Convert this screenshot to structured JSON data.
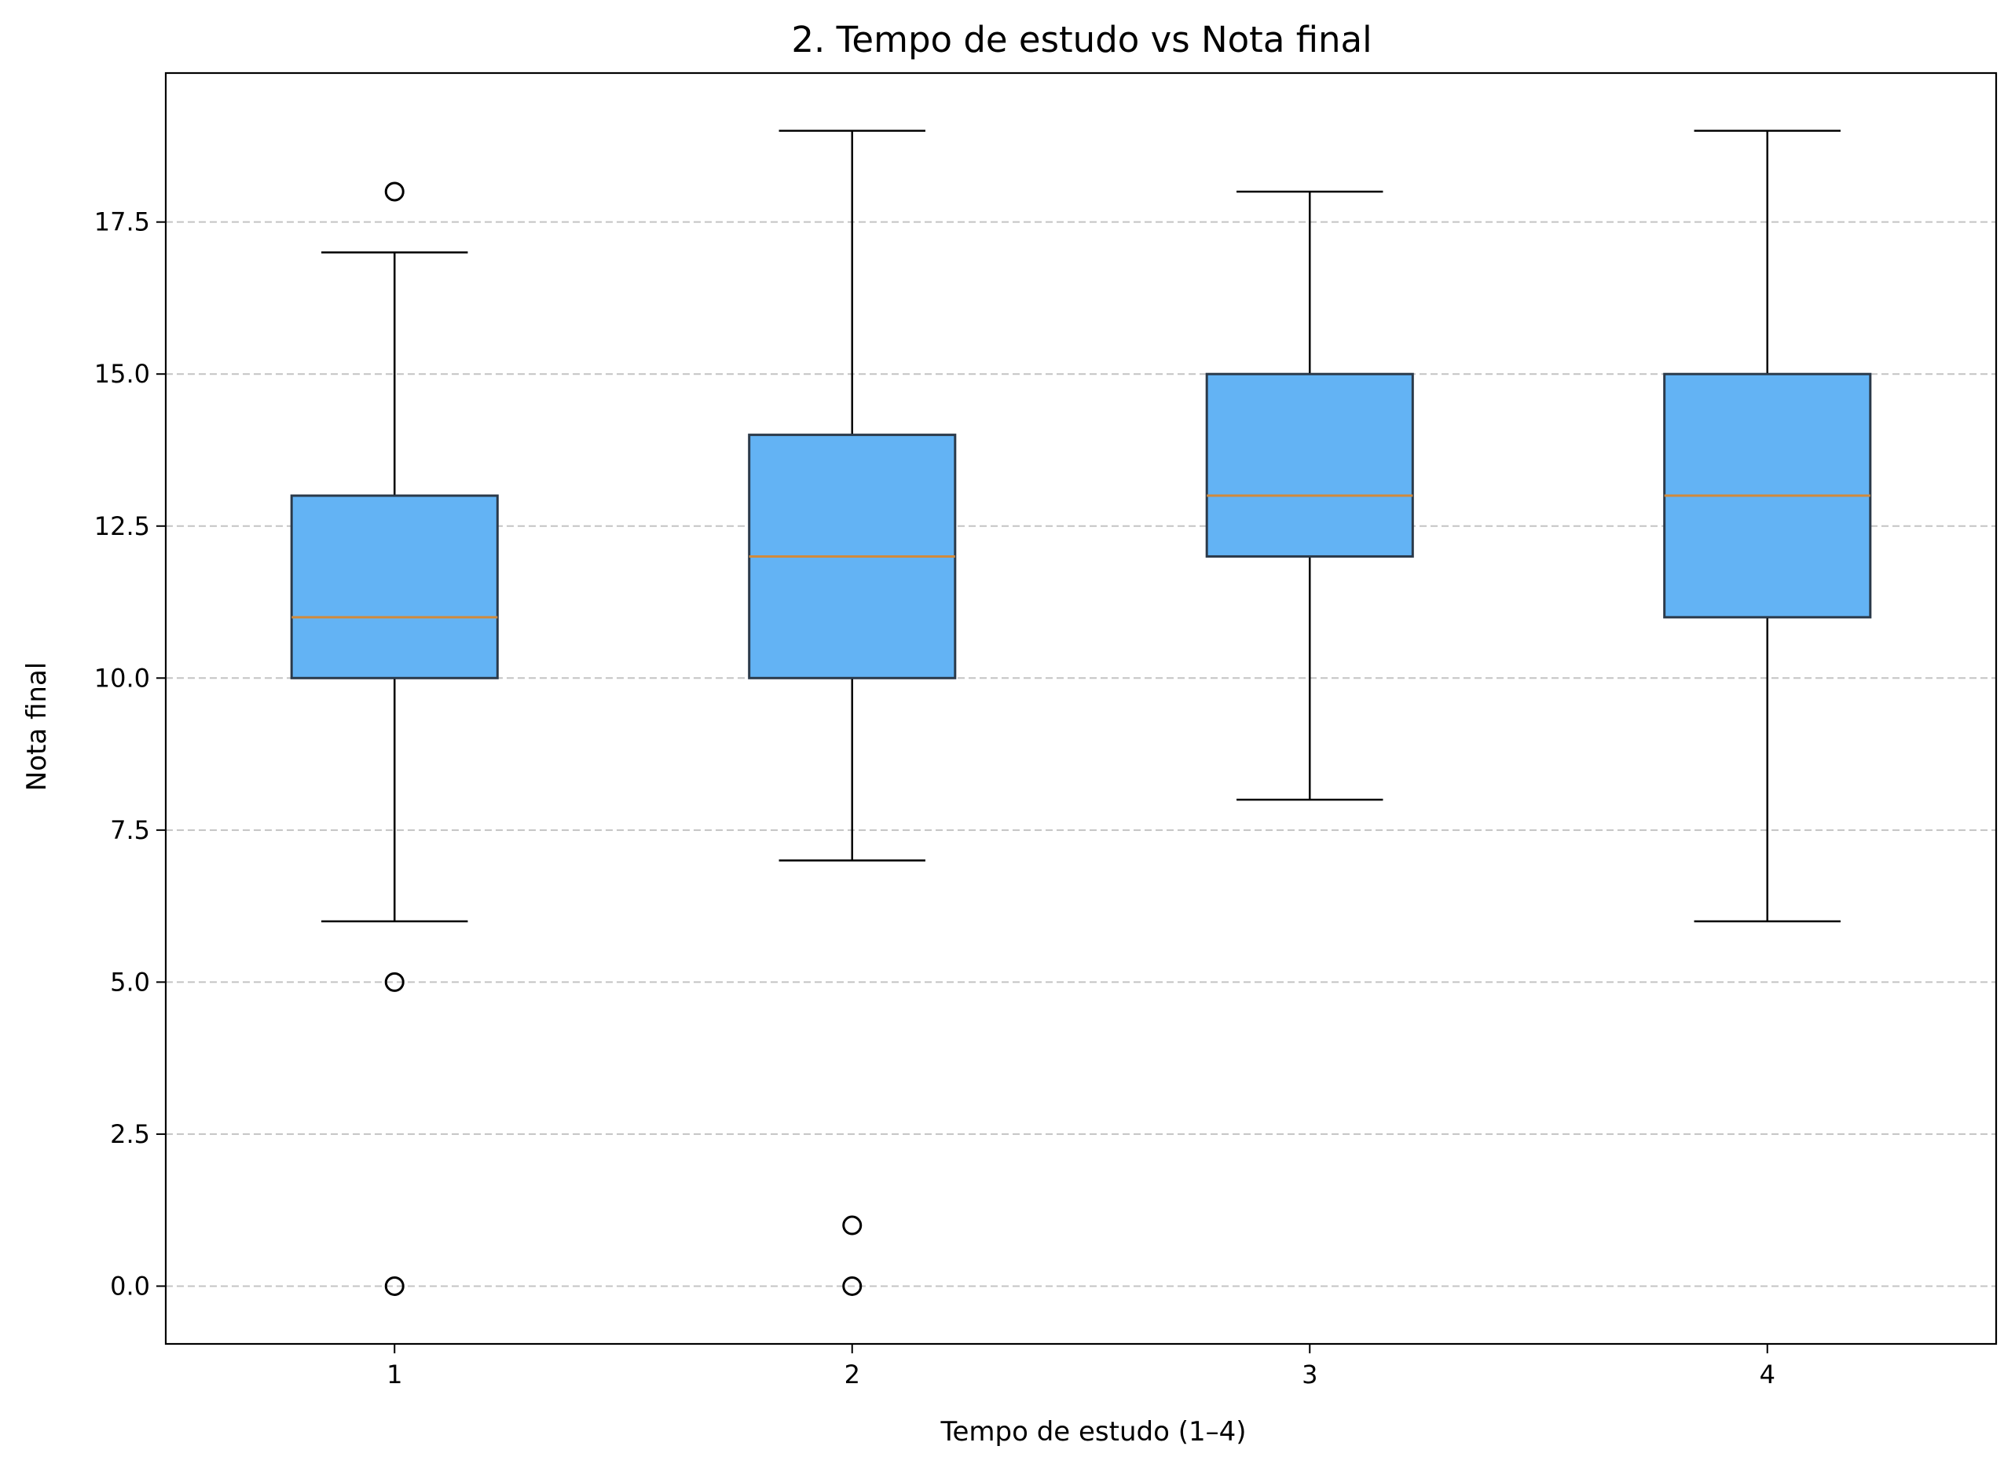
{
  "chart_data": {
    "type": "boxplot",
    "title": "2. Tempo de estudo vs Nota final",
    "xlabel": "Tempo de estudo (1–4)",
    "ylabel": "Nota final",
    "ylim": [
      -0.95,
      19.95
    ],
    "xlim": [
      0.5,
      4.5
    ],
    "grid": "y-dashed",
    "box_color": "#63b3f4",
    "box_edge_color": "#2b3a4a",
    "median_color": "#d08a3c",
    "x_ticks": [
      {
        "value": 1,
        "label": "1"
      },
      {
        "value": 2,
        "label": "2"
      },
      {
        "value": 3,
        "label": "3"
      },
      {
        "value": 4,
        "label": "4"
      }
    ],
    "y_ticks": [
      {
        "value": 0,
        "label": "0.0"
      },
      {
        "value": 2.5,
        "label": "2.5"
      },
      {
        "value": 5,
        "label": "5.0"
      },
      {
        "value": 7.5,
        "label": "7.5"
      },
      {
        "value": 10,
        "label": "10.0"
      },
      {
        "value": 12.5,
        "label": "12.5"
      },
      {
        "value": 15,
        "label": "15.0"
      },
      {
        "value": 17.5,
        "label": "17.5"
      }
    ],
    "boxes": [
      {
        "x": 1,
        "whisker_low": 6,
        "q1": 10,
        "median": 11,
        "q3": 13,
        "whisker_high": 17,
        "outliers": [
          18,
          5,
          0
        ]
      },
      {
        "x": 2,
        "whisker_low": 7,
        "q1": 10,
        "median": 12,
        "q3": 14,
        "whisker_high": 19,
        "outliers": [
          1,
          0
        ]
      },
      {
        "x": 3,
        "whisker_low": 8,
        "q1": 12,
        "median": 13,
        "q3": 15,
        "whisker_high": 18,
        "outliers": []
      },
      {
        "x": 4,
        "whisker_low": 6,
        "q1": 11,
        "median": 13,
        "q3": 15,
        "whisker_high": 19,
        "outliers": []
      }
    ]
  }
}
